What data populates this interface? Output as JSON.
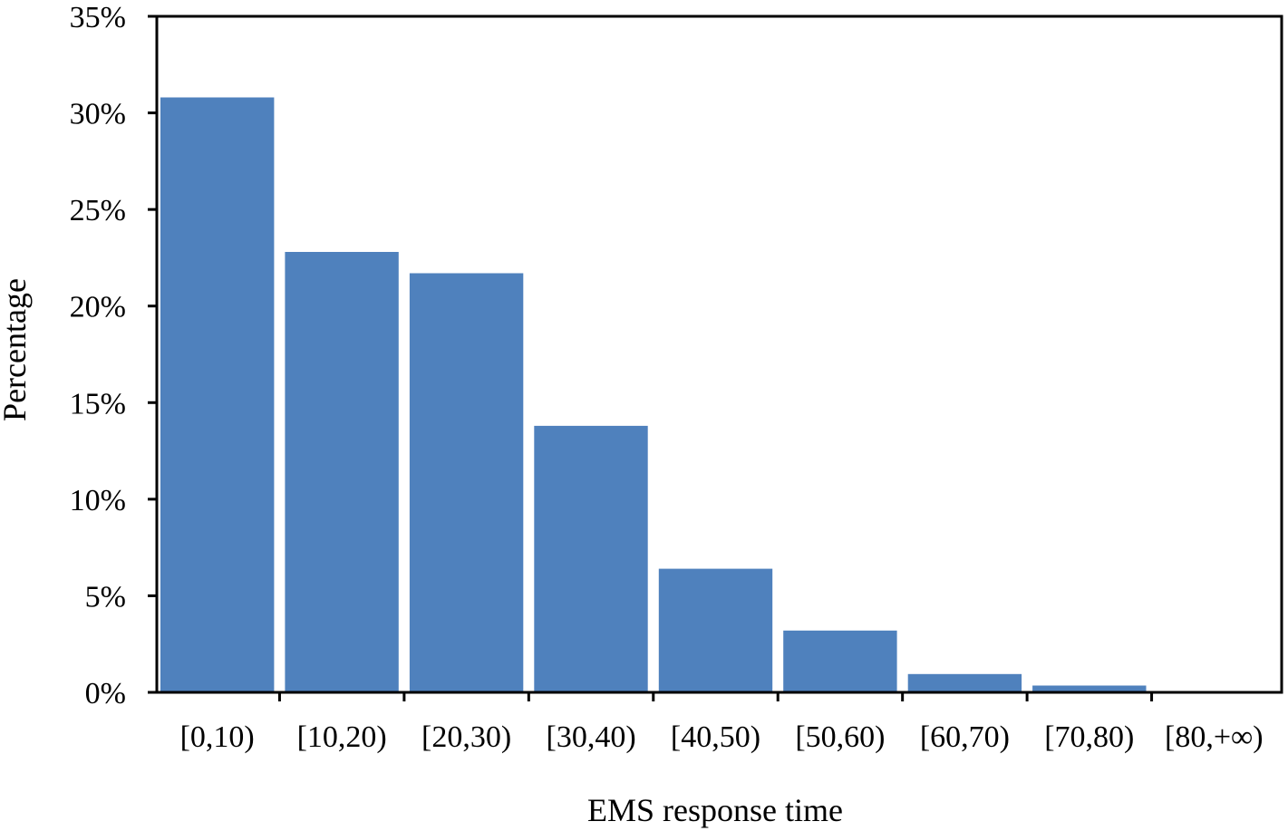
{
  "chart_data": {
    "type": "bar",
    "title": "",
    "xlabel": "EMS response time",
    "ylabel": "Percentage",
    "categories": [
      "[0,10)",
      "[10,20)",
      "[20,30)",
      "[30,40)",
      "[40,50)",
      "[50,60)",
      "[60,70)",
      "[70,80)",
      "[80,+∞)"
    ],
    "values": [
      30.8,
      22.8,
      21.7,
      13.8,
      6.4,
      3.2,
      0.95,
      0.35,
      0.05
    ],
    "ylim": [
      0,
      35
    ],
    "yticks": [
      0,
      5,
      10,
      15,
      20,
      25,
      30,
      35
    ],
    "ytick_format": "percent",
    "grid": false,
    "legend": "none",
    "bar_color": "#4F81BD"
  }
}
